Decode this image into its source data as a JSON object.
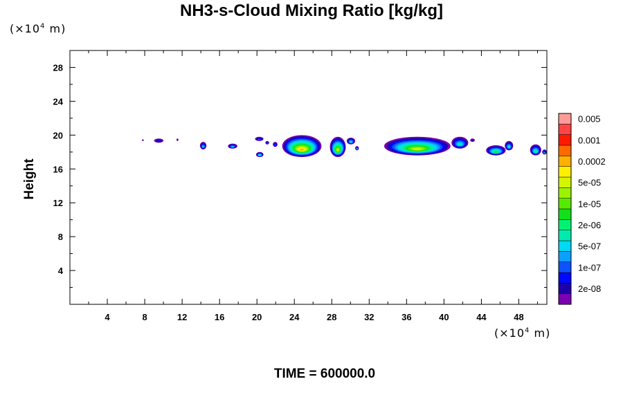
{
  "chart_data": {
    "type": "heatmap",
    "title": "NH3-s-Cloud Mixing Ratio [kg/kg]",
    "ylabel": "Height",
    "x_scale_note": {
      "prefix": "(×10",
      "exp": "4",
      "suffix": " m)"
    },
    "y_scale_note": {
      "prefix": "(×10",
      "exp": "4",
      "suffix": " m)"
    },
    "xlim": [
      0,
      51
    ],
    "ylim": [
      0,
      30
    ],
    "x_ticks": [
      4,
      8,
      12,
      16,
      20,
      24,
      28,
      32,
      36,
      40,
      44,
      48
    ],
    "x_tick_labels": [
      "4",
      "8",
      "12",
      "16",
      "20",
      "24",
      "28",
      "32",
      "36",
      "40",
      "44",
      "48"
    ],
    "y_ticks": [
      4,
      8,
      12,
      16,
      20,
      24,
      28
    ],
    "y_tick_labels": [
      "4",
      "8",
      "12",
      "16",
      "20",
      "24",
      "28"
    ],
    "x_minor_step": 2,
    "y_minor_step": 2,
    "colorbar": {
      "levels": [
        {
          "color": "#7b00b3",
          "label": ""
        },
        {
          "color": "#1f00a8",
          "label": "2e-08"
        },
        {
          "color": "#0008ff",
          "label": ""
        },
        {
          "color": "#0c52ff",
          "label": "1e-07"
        },
        {
          "color": "#0aa0ff",
          "label": ""
        },
        {
          "color": "#00d8f6",
          "label": "5e-07"
        },
        {
          "color": "#00ebb0",
          "label": ""
        },
        {
          "color": "#00f272",
          "label": "2e-06"
        },
        {
          "color": "#12e01a",
          "label": ""
        },
        {
          "color": "#57ea00",
          "label": "1e-05"
        },
        {
          "color": "#9cf200",
          "label": ""
        },
        {
          "color": "#d4f500",
          "label": "5e-05"
        },
        {
          "color": "#fff000",
          "label": ""
        },
        {
          "color": "#ffb000",
          "label": "0.0002"
        },
        {
          "color": "#ff6a00",
          "label": ""
        },
        {
          "color": "#ff1a00",
          "label": "0.001"
        },
        {
          "color": "#ff4545",
          "label": ""
        },
        {
          "color": "#ff9a9a",
          "label": "0.005"
        }
      ]
    },
    "cloud_blobs": [
      {
        "x0": 7.7,
        "x1": 7.9,
        "y0": 19.3,
        "y1": 19.5,
        "max_level": 1
      },
      {
        "x0": 9.0,
        "x1": 10.0,
        "y0": 19.1,
        "y1": 19.6,
        "max_level": 2
      },
      {
        "x0": 11.4,
        "x1": 11.6,
        "y0": 19.3,
        "y1": 19.6,
        "max_level": 1
      },
      {
        "x0": 13.9,
        "x1": 14.6,
        "y0": 18.3,
        "y1": 19.2,
        "max_level": 5
      },
      {
        "x0": 16.9,
        "x1": 17.9,
        "y0": 18.4,
        "y1": 19.0,
        "max_level": 5
      },
      {
        "x0": 19.9,
        "x1": 20.7,
        "y0": 17.4,
        "y1": 18.0,
        "max_level": 7
      },
      {
        "x0": 19.8,
        "x1": 20.7,
        "y0": 19.3,
        "y1": 19.8,
        "max_level": 3
      },
      {
        "x0": 20.9,
        "x1": 21.3,
        "y0": 18.9,
        "y1": 19.3,
        "max_level": 3
      },
      {
        "x0": 21.7,
        "x1": 22.2,
        "y0": 18.6,
        "y1": 19.2,
        "max_level": 3
      },
      {
        "x0": 22.7,
        "x1": 26.9,
        "y0": 17.4,
        "y1": 20.0,
        "max_level": 13
      },
      {
        "x0": 27.8,
        "x1": 29.5,
        "y0": 17.4,
        "y1": 19.8,
        "max_level": 11
      },
      {
        "x0": 29.6,
        "x1": 30.5,
        "y0": 18.9,
        "y1": 19.7,
        "max_level": 6
      },
      {
        "x0": 30.5,
        "x1": 30.9,
        "y0": 18.2,
        "y1": 18.7,
        "max_level": 5
      },
      {
        "x0": 33.6,
        "x1": 40.7,
        "y0": 17.6,
        "y1": 19.8,
        "max_level": 11
      },
      {
        "x0": 40.8,
        "x1": 42.6,
        "y0": 18.4,
        "y1": 19.8,
        "max_level": 6
      },
      {
        "x0": 42.8,
        "x1": 43.3,
        "y0": 19.2,
        "y1": 19.6,
        "max_level": 1
      },
      {
        "x0": 44.5,
        "x1": 46.6,
        "y0": 17.6,
        "y1": 18.8,
        "max_level": 8
      },
      {
        "x0": 46.5,
        "x1": 47.4,
        "y0": 18.2,
        "y1": 19.3,
        "max_level": 6
      },
      {
        "x0": 49.2,
        "x1": 50.4,
        "y0": 17.6,
        "y1": 18.9,
        "max_level": 7
      },
      {
        "x0": 50.5,
        "x1": 51.0,
        "y0": 17.7,
        "y1": 18.3,
        "max_level": 5
      }
    ]
  },
  "footer": {
    "time_label": "TIME = 600000.0"
  }
}
